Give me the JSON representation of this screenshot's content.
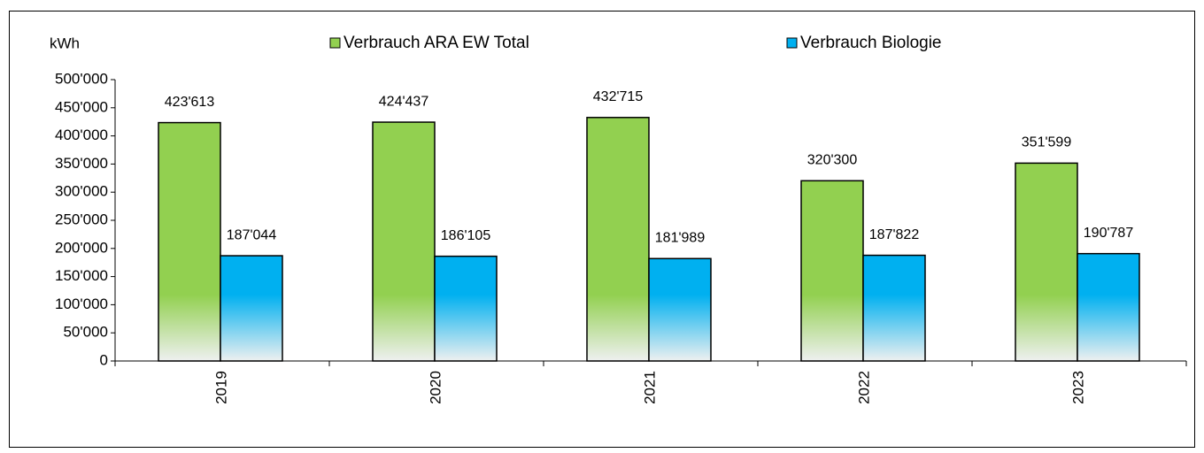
{
  "chart_data": {
    "type": "bar",
    "y_label": "kWh",
    "categories": [
      "2019",
      "2020",
      "2021",
      "2022",
      "2023"
    ],
    "series": [
      {
        "name": "Verbrauch ARA EW Total",
        "color": "#92d050",
        "values": [
          423613,
          424437,
          432715,
          320300,
          351599
        ],
        "value_labels": [
          "423'613",
          "424'437",
          "432'715",
          "320'300",
          "351'599"
        ]
      },
      {
        "name": "Verbrauch Biologie",
        "color": "#00b0f0",
        "values": [
          187044,
          186105,
          181989,
          187822,
          190787
        ],
        "value_labels": [
          "187'044",
          "186'105",
          "181'989",
          "187'822",
          "190'787"
        ]
      }
    ],
    "ylim": [
      0,
      500000
    ],
    "yticks": [
      0,
      {
        "value": 50000,
        "label": "50'000"
      },
      {
        "value": 100000,
        "label": "100'000"
      },
      {
        "value": 150000,
        "label": "150'000"
      },
      {
        "value": 200000,
        "label": "200'000"
      },
      {
        "value": 250000,
        "label": "250'000"
      },
      {
        "value": 300000,
        "label": "300'000"
      },
      {
        "value": 350000,
        "label": "350'000"
      },
      {
        "value": 400000,
        "label": "400'000"
      },
      {
        "value": 450000,
        "label": "450'000"
      },
      {
        "value": 500000,
        "label": "500'000"
      }
    ],
    "legend": "top"
  }
}
